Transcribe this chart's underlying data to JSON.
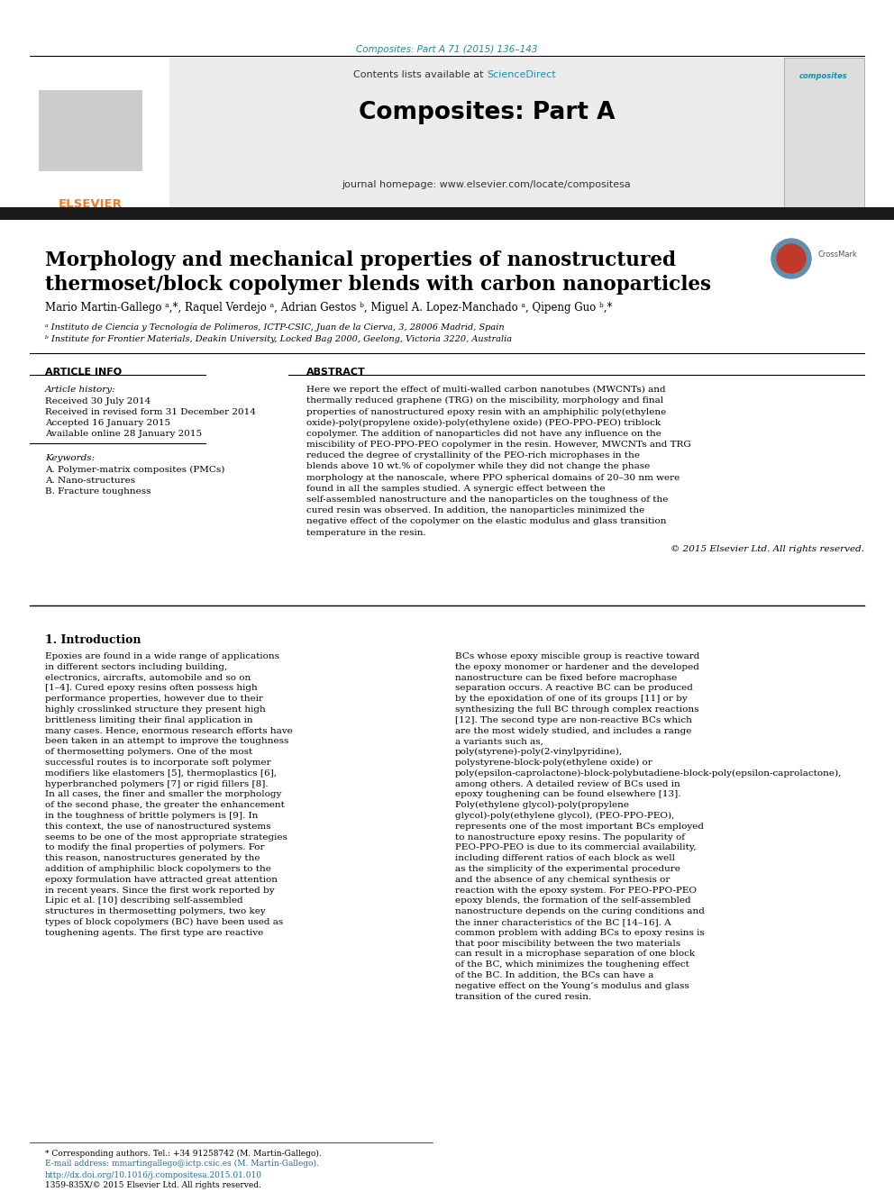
{
  "page_bg": "#ffffff",
  "top_citation": "Composites: Part A 71 (2015) 136–143",
  "top_citation_color": "#1a8fa0",
  "journal_header_bg": "#e8e8e8",
  "journal_name": "Composites: Part A",
  "contents_line": "Contents lists available at ScienceDirect",
  "sciencedirect_color": "#1a8fa0",
  "homepage_line": "journal homepage: www.elsevier.com/locate/compositesa",
  "elsevier_color": "#f47920",
  "black_bar_color": "#1a1a1a",
  "paper_title_line1": "Morphology and mechanical properties of nanostructured",
  "paper_title_line2": "thermoset/block copolymer blends with carbon nanoparticles",
  "paper_title_fontsize": 15.5,
  "authors_full": "Mario Martin-Gallego ᵃ,*, Raquel Verdejo ᵃ, Adrian Gestos ᵇ, Miguel A. Lopez-Manchado ᵃ, Qipeng Guo ᵇ,*",
  "affil_a": "ᵃ Instituto de Ciencia y Tecnología de Polímeros, ICTP-CSIC, Juan de la Cierva, 3, 28006 Madrid, Spain",
  "affil_b": "ᵇ Institute for Frontier Materials, Deakin University, Locked Bag 2000, Geelong, Victoria 3220, Australia",
  "section_article_info": "ARTICLE INFO",
  "section_abstract": "ABSTRACT",
  "article_history_label": "Article history:",
  "received": "Received 30 July 2014",
  "received_revised": "Received in revised form 31 December 2014",
  "accepted": "Accepted 16 January 2015",
  "available": "Available online 28 January 2015",
  "keywords_label": "Keywords:",
  "kw1": "A. Polymer-matrix composites (PMCs)",
  "kw2": "A. Nano-structures",
  "kw3": "B. Fracture toughness",
  "abstract_text": "Here we report the effect of multi-walled carbon nanotubes (MWCNTs) and thermally reduced graphene (TRG) on the miscibility, morphology and final properties of nanostructured epoxy resin with an amphiphilic poly(ethylene oxide)-poly(propylene oxide)-poly(ethylene oxide) (PEO-PPO-PEO) triblock copolymer. The addition of nanoparticles did not have any influence on the miscibility of PEO-PPO-PEO copolymer in the resin. However, MWCNTs and TRG reduced the degree of crystallinity of the PEO-rich microphases in the blends above 10 wt.% of copolymer while they did not change the phase morphology at the nanoscale, where PPO spherical domains of 20–30 nm were found in all the samples studied. A synergic effect between the self-assembled nanostructure and the nanoparticles on the toughness of the cured resin was observed. In addition, the nanoparticles minimized the negative effect of the copolymer on the elastic modulus and glass transition temperature in the resin.",
  "copyright": "© 2015 Elsevier Ltd. All rights reserved.",
  "intro_heading": "1. Introduction",
  "intro_col1": "    Epoxies are found in a wide range of applications in different sectors including building, electronics, aircrafts, automobile and so on [1–4]. Cured epoxy resins often possess high performance properties, however due to their highly crosslinked structure they present high brittleness limiting their final application in many cases. Hence, enormous research efforts have been taken in an attempt to improve the toughness of thermosetting polymers. One of the most successful routes is to incorporate soft polymer modifiers like elastomers [5], thermoplastics [6], hyperbranched polymers [7] or rigid fillers [8]. In all cases, the finer and smaller the morphology of the second phase, the greater the enhancement in the toughness of brittle polymers is [9].\n    In this context, the use of nanostructured systems seems to be one of the most appropriate strategies to modify the final properties of polymers. For this reason, nanostructures generated by the addition of amphiphilic block copolymers to the epoxy formulation have attracted great attention in recent years. Since the first work reported by Lipic et al. [10] describing self-assembled structures in thermosetting polymers, two key types of block copolymers (BC) have been used as toughening agents. The first type are reactive",
  "intro_col2": "BCs whose epoxy miscible group is reactive toward the epoxy monomer or hardener and the developed nanostructure can be fixed before macrophase separation occurs. A reactive BC can be produced by the epoxidation of one of its groups [11] or by synthesizing the full BC through complex reactions [12]. The second type are non-reactive BCs which are the most widely studied, and includes a range a variants such as, poly(styrene)-poly(2-vinylpyridine), polystyrene-block-poly(ethylene oxide) or poly(epsilon-caprolactone)-block-polybutadiene-block-poly(epsilon-caprolactone), among others. A detailed review of BCs used in epoxy toughening can be found elsewhere [13]. Poly(ethylene glycol)-poly(propylene glycol)-poly(ethylene glycol), (PEO-PPO-PEO), represents one of the most important BCs employed to nanostructure epoxy resins. The popularity of PEO-PPO-PEO is due to its commercial availability, including different ratios of each block as well as the simplicity of the experimental procedure and the absence of any chemical synthesis or reaction with the epoxy system. For PEO-PPO-PEO epoxy blends, the formation of the self-assembled nanostructure depends on the curing conditions and the inner characteristics of the BC [14–16]. A common problem with adding BCs to epoxy resins is that poor miscibility between the two materials can result in a microphase separation of one block of the BC, which minimizes the toughening effect of the BC. In addition, the BCs can have a negative effect on the Young’s modulus and glass transition of the cured resin.",
  "footnote1": "* Corresponding authors. Tel.: +34 91258742 (M. Martin-Gallego).",
  "footnote2": "E-mail address: mmartingallego@ictp.csic.es (M. Martin-Gallego).",
  "footnote3": "http://dx.doi.org/10.1016/j.compositesa.2015.01.010",
  "footnote4": "1359-835X/© 2015 Elsevier Ltd. All rights reserved.",
  "link_color": "#1a6ea0"
}
